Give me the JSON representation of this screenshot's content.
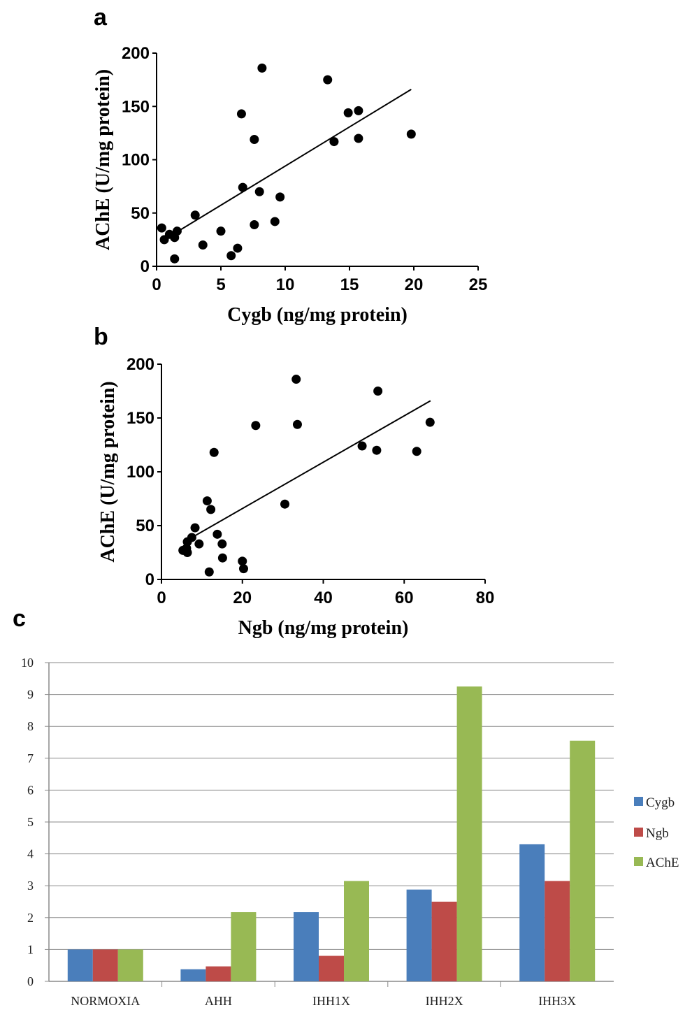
{
  "panels": {
    "a": {
      "letter": "a"
    },
    "b": {
      "letter": "b"
    },
    "c": {
      "letter": "c"
    }
  },
  "chart_data": [
    {
      "type": "scatter",
      "panel": "a",
      "xlabel": "Cygb (ng/mg protein)",
      "ylabel": "AChE (U/mg protein)",
      "xlim": [
        0,
        25
      ],
      "ylim": [
        0,
        200
      ],
      "xticks": [
        0,
        5,
        10,
        15,
        20,
        25
      ],
      "yticks": [
        0,
        50,
        100,
        150,
        200
      ],
      "points": [
        [
          0.4,
          36
        ],
        [
          0.6,
          25
        ],
        [
          1.0,
          30
        ],
        [
          1.4,
          27
        ],
        [
          1.6,
          33
        ],
        [
          1.4,
          7
        ],
        [
          3.0,
          48
        ],
        [
          3.6,
          20
        ],
        [
          5.0,
          33
        ],
        [
          5.8,
          10
        ],
        [
          6.3,
          17
        ],
        [
          6.6,
          143
        ],
        [
          6.7,
          74
        ],
        [
          7.6,
          119
        ],
        [
          7.6,
          39
        ],
        [
          8.2,
          186
        ],
        [
          8.0,
          70
        ],
        [
          9.2,
          42
        ],
        [
          9.6,
          65
        ],
        [
          13.3,
          175
        ],
        [
          13.8,
          117
        ],
        [
          14.9,
          144
        ],
        [
          15.7,
          146
        ],
        [
          15.7,
          120
        ],
        [
          19.8,
          124
        ]
      ],
      "trendline": {
        "x": [
          0.6,
          19.8
        ],
        "y": [
          25,
          166
        ]
      }
    },
    {
      "type": "scatter",
      "panel": "b",
      "xlabel": "Ngb (ng/mg protein)",
      "ylabel": "AChE (U/mg protein)",
      "xlim": [
        0,
        80
      ],
      "ylim": [
        0,
        200
      ],
      "xticks": [
        0,
        20,
        40,
        60,
        80
      ],
      "yticks": [
        0,
        50,
        100,
        150,
        200
      ],
      "points": [
        [
          5.3,
          27
        ],
        [
          6.2,
          29
        ],
        [
          6.4,
          35
        ],
        [
          6.4,
          25
        ],
        [
          7.5,
          39
        ],
        [
          8.3,
          48
        ],
        [
          9.3,
          33
        ],
        [
          11.3,
          73
        ],
        [
          11.8,
          7
        ],
        [
          12.2,
          65
        ],
        [
          13.0,
          118
        ],
        [
          13.8,
          42
        ],
        [
          15.0,
          33
        ],
        [
          15.1,
          20
        ],
        [
          20.0,
          17
        ],
        [
          20.3,
          10
        ],
        [
          23.3,
          143
        ],
        [
          30.5,
          70
        ],
        [
          33.3,
          186
        ],
        [
          33.6,
          144
        ],
        [
          49.6,
          124
        ],
        [
          53.2,
          120
        ],
        [
          53.5,
          175
        ],
        [
          63.1,
          119
        ],
        [
          66.4,
          146
        ]
      ],
      "trendline": {
        "x": [
          8.0,
          66.5
        ],
        "y": [
          40,
          166
        ]
      }
    },
    {
      "type": "bar",
      "panel": "c",
      "categories": [
        "NORMOXIA",
        "AHH",
        "IHH1X",
        "IHH2X",
        "IHH3X"
      ],
      "series": [
        {
          "name": "Cygb",
          "color": "#4a7ebb",
          "values": [
            1.0,
            0.38,
            2.17,
            2.88,
            4.3
          ]
        },
        {
          "name": "Ngb",
          "color": "#be4b48",
          "values": [
            1.0,
            0.47,
            0.8,
            2.5,
            3.15
          ]
        },
        {
          "name": "AChE",
          "color": "#98b954",
          "values": [
            1.0,
            2.17,
            3.15,
            9.25,
            7.55
          ]
        }
      ],
      "ylim": [
        0,
        10
      ],
      "yticks": [
        0,
        1,
        2,
        3,
        4,
        5,
        6,
        7,
        8,
        9,
        10
      ],
      "legend": "right",
      "grid": true
    }
  ]
}
